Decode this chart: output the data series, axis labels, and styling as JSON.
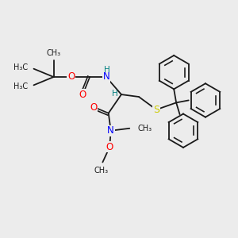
{
  "background_color": "#ececec",
  "bond_color": "#1a1a1a",
  "atom_colors": {
    "O": "#ff0000",
    "N": "#0000ff",
    "S": "#cccc00",
    "H": "#008080",
    "C": "#1a1a1a"
  },
  "figsize": [
    3.0,
    3.0
  ],
  "dpi": 100,
  "xlim": [
    0,
    10
  ],
  "ylim": [
    0,
    10
  ]
}
